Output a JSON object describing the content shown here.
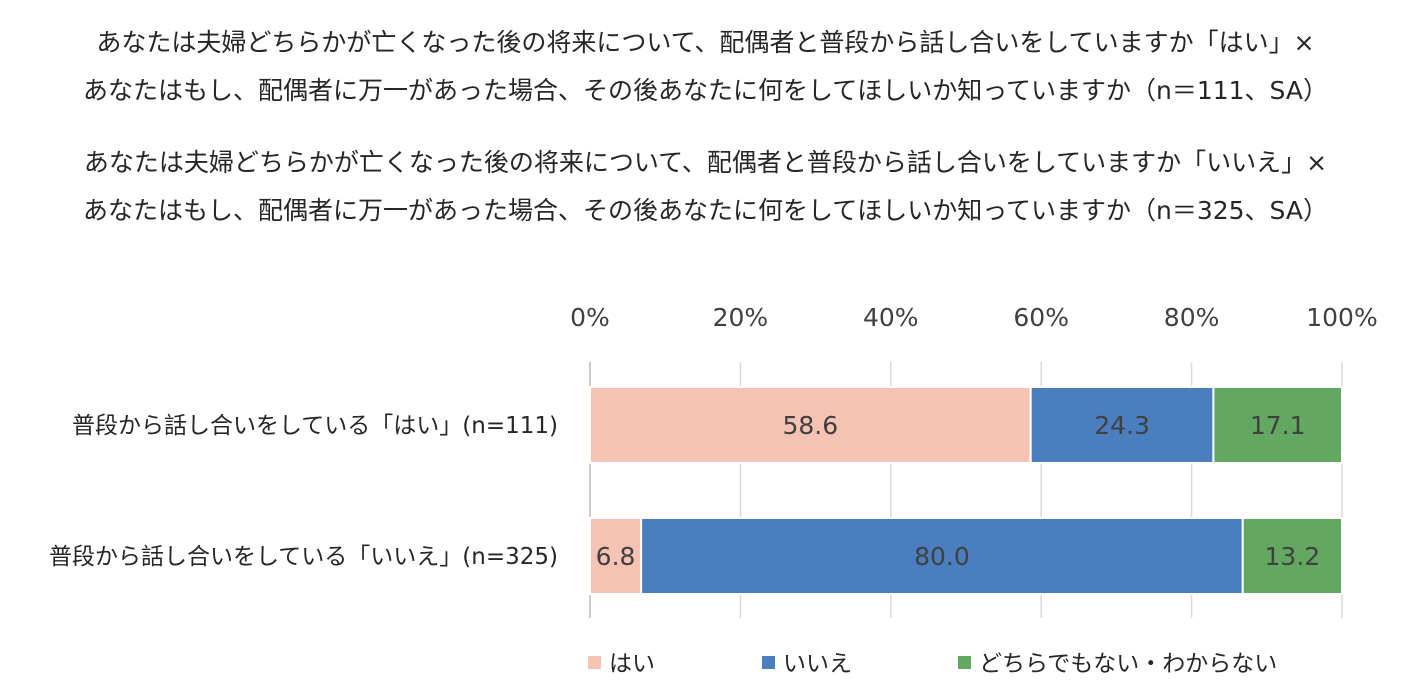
{
  "title_lines": [
    "あなたは夫婦どちらかが亡くなった後の将来について、配偶者と普段から話し合いをしていますか「はい」×",
    "あなたはもし、配偶者に万一があった場合、その後あなたに何をしてほしいか知っていますか（n＝111、SA）",
    "あなたは夫婦どちらかが亡くなった後の将来について、配偶者と普段から話し合いをしていますか「いいえ」×",
    "あなたはもし、配偶者に万一があった場合、その後あなたに何をしてほしいか知っていますか（n＝325、SA）"
  ],
  "chart_data": {
    "type": "bar",
    "orientation": "horizontal",
    "stacked": "percent",
    "categories": [
      "普段から話し合いをしている「はい」(n=111)",
      "普段から話し合いをしている「いいえ」(n=325)"
    ],
    "series": [
      {
        "name": "はい",
        "values": [
          58.6,
          6.8
        ],
        "labels": [
          "58.6",
          "6.8"
        ],
        "color": "#f5c3b3"
      },
      {
        "name": "いいえ",
        "values": [
          24.3,
          80.0
        ],
        "labels": [
          "24.3",
          "80.0"
        ],
        "color": "#4a7ebf"
      },
      {
        "name": "どちらでもない・わからない",
        "values": [
          17.1,
          13.2
        ],
        "labels": [
          "17.1",
          "13.2"
        ],
        "color": "#62a861"
      }
    ],
    "xlim": [
      0,
      100
    ],
    "x_ticks": [
      "0%",
      "20%",
      "40%",
      "60%",
      "80%",
      "100%"
    ],
    "x_tick_values": [
      0,
      20,
      40,
      60,
      80,
      100
    ],
    "axis_position": "top",
    "grid": true,
    "legend_position": "bottom"
  }
}
